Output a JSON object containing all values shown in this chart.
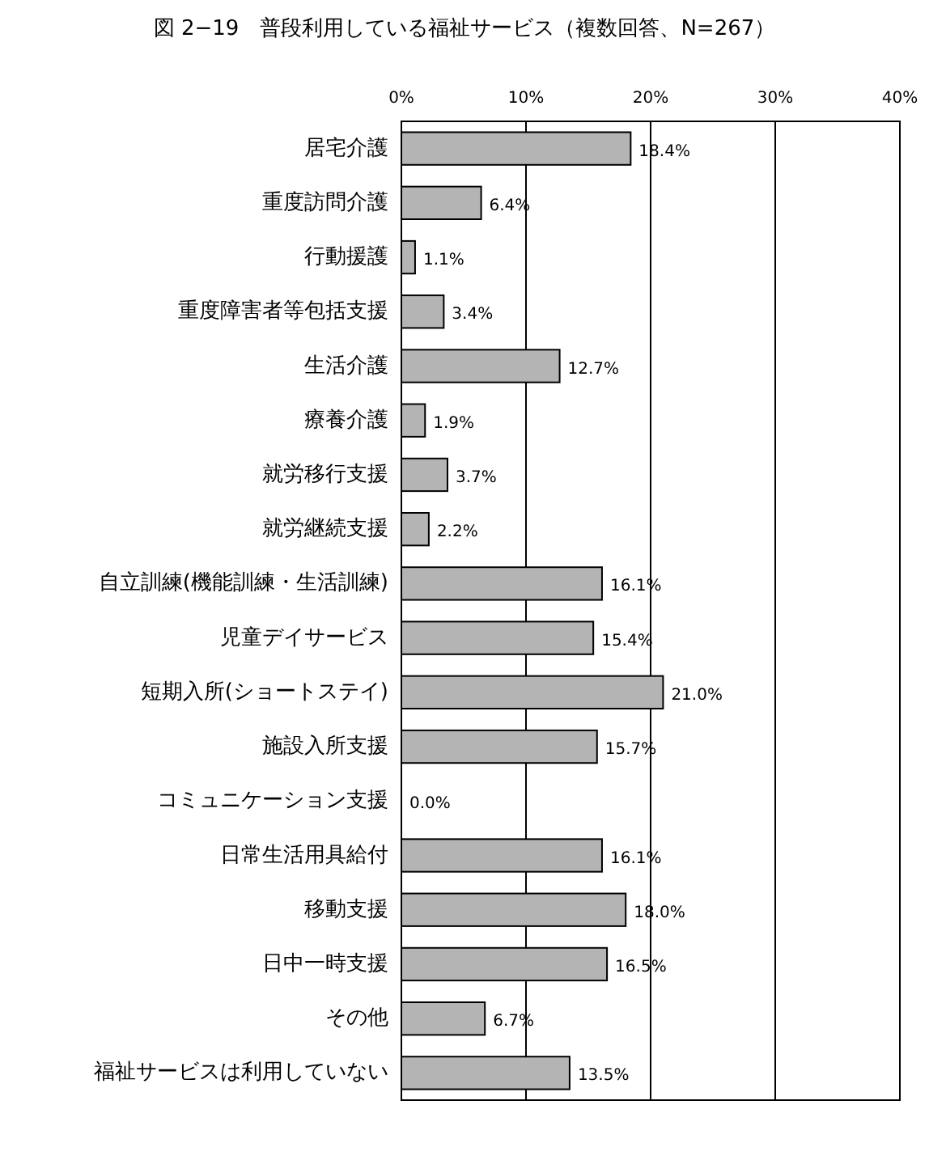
{
  "chart_data": {
    "type": "bar",
    "orientation": "horizontal",
    "title": "図 2−19　普段利用している福祉サービス（複数回答、N=267）",
    "categories": [
      "居宅介護",
      "重度訪問介護",
      "行動援護",
      "重度障害者等包括支援",
      "生活介護",
      "療養介護",
      "就労移行支援",
      "就労継続支援",
      "自立訓練(機能訓練・生活訓練)",
      "児童デイサービス",
      "短期入所(ショートステイ)",
      "施設入所支援",
      "コミュニケーション支援",
      "日常生活用具給付",
      "移動支援",
      "日中一時支援",
      "その他",
      "福祉サービスは利用していない"
    ],
    "values": [
      18.4,
      6.4,
      1.1,
      3.4,
      12.7,
      1.9,
      3.7,
      2.2,
      16.1,
      15.4,
      21.0,
      15.7,
      0.0,
      16.1,
      18.0,
      16.5,
      6.7,
      13.5
    ],
    "value_labels": [
      "18.4%",
      "6.4%",
      "1.1%",
      "3.4%",
      "12.7%",
      "1.9%",
      "3.7%",
      "2.2%",
      "16.1%",
      "15.4%",
      "21.0%",
      "15.7%",
      "0.0%",
      "16.1%",
      "18.0%",
      "16.5%",
      "6.7%",
      "13.5%"
    ],
    "color": "#b4b4b4",
    "xlim": [
      0,
      40
    ],
    "xticks": [
      {
        "value": 0,
        "label": "0%"
      },
      {
        "value": 10,
        "label": "10%"
      },
      {
        "value": 20,
        "label": "20%"
      },
      {
        "value": 30,
        "label": "30%"
      },
      {
        "value": 40,
        "label": "40%"
      }
    ],
    "grid": "x"
  }
}
